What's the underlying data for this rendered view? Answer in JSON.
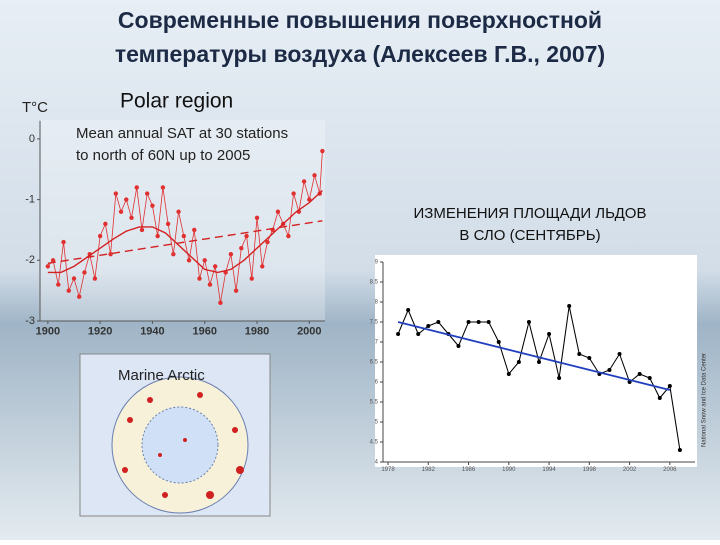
{
  "slide": {
    "title_lines": [
      "Современные повышения поверхностной",
      "температуры воздуха (Алексеев Г.В., 2007)"
    ],
    "map_label": "Marine Arctic"
  },
  "chart_data": [
    {
      "type": "line",
      "title": "Polar region",
      "subtitle_lines": [
        "Mean annual SAT at 30 stations",
        "to north of 60N up to 2005"
      ],
      "y_label": "T°C",
      "x": [
        1900,
        1902,
        1904,
        1906,
        1908,
        1910,
        1912,
        1914,
        1916,
        1918,
        1920,
        1922,
        1924,
        1926,
        1928,
        1930,
        1932,
        1934,
        1936,
        1938,
        1940,
        1942,
        1944,
        1946,
        1948,
        1950,
        1952,
        1954,
        1956,
        1958,
        1960,
        1962,
        1964,
        1966,
        1968,
        1970,
        1972,
        1974,
        1976,
        1978,
        1980,
        1982,
        1984,
        1986,
        1988,
        1990,
        1992,
        1994,
        1996,
        1998,
        2000,
        2002,
        2004,
        2005
      ],
      "xlim": [
        1897,
        2006
      ],
      "xticks": [
        1900,
        1920,
        1940,
        1960,
        1980,
        2000
      ],
      "ylim": [
        -3,
        0.3
      ],
      "yticks": [
        0,
        -1,
        -2,
        -3
      ],
      "series": [
        {
          "color": "#e03030",
          "markers": true,
          "values": [
            -2.1,
            -2.0,
            -2.4,
            -1.7,
            -2.5,
            -2.3,
            -2.6,
            -2.2,
            -1.9,
            -2.3,
            -1.6,
            -1.4,
            -1.9,
            -0.9,
            -1.2,
            -1.0,
            -1.3,
            -0.8,
            -1.5,
            -0.9,
            -1.1,
            -1.6,
            -0.8,
            -1.4,
            -1.9,
            -1.2,
            -1.6,
            -2.0,
            -1.5,
            -2.3,
            -2.0,
            -2.4,
            -2.1,
            -2.7,
            -2.2,
            -1.9,
            -2.5,
            -1.8,
            -1.6,
            -2.3,
            -1.3,
            -2.1,
            -1.7,
            -1.5,
            -1.2,
            -1.4,
            -1.6,
            -0.9,
            -1.2,
            -0.7,
            -1.0,
            -0.6,
            -0.9,
            -0.2
          ]
        },
        {
          "color": "#d42020",
          "x": [
            1900,
            1905,
            1910,
            1915,
            1920,
            1925,
            1930,
            1935,
            1940,
            1945,
            1950,
            1955,
            1960,
            1965,
            1970,
            1975,
            1980,
            1985,
            1990,
            1995,
            2000,
            2005
          ],
          "values": [
            -2.2,
            -2.2,
            -2.1,
            -1.95,
            -1.8,
            -1.65,
            -1.52,
            -1.45,
            -1.45,
            -1.55,
            -1.75,
            -1.95,
            -2.15,
            -2.2,
            -2.15,
            -2.0,
            -1.8,
            -1.6,
            -1.4,
            -1.2,
            -1.05,
            -0.85
          ]
        },
        {
          "color": "#d42020",
          "dashed": true,
          "x": [
            1900,
            2005
          ],
          "values": [
            -2.05,
            -1.35
          ]
        }
      ]
    },
    {
      "type": "line",
      "title": "ИЗМЕНЕНИЯ ПЛОЩАДИ ЛЬДОВ В СЛО (СЕНТЯБРЬ)",
      "source": "National Snow and Ice Data Center",
      "x": [
        1979,
        1980,
        1981,
        1982,
        1983,
        1984,
        1985,
        1986,
        1987,
        1988,
        1989,
        1990,
        1991,
        1992,
        1993,
        1994,
        1995,
        1996,
        1997,
        1998,
        1999,
        2000,
        2001,
        2002,
        2003,
        2004,
        2005,
        2006,
        2007
      ],
      "xlim": [
        1977.5,
        2008.5
      ],
      "xticks": [
        1978,
        1982,
        1986,
        1990,
        1994,
        1998,
        2002,
        2006
      ],
      "ylim": [
        4,
        9
      ],
      "yticks": [
        9,
        8.5,
        8,
        7.5,
        7,
        6.5,
        6,
        5.5,
        5,
        4.5,
        4
      ],
      "series": [
        {
          "color": "#000000",
          "markers": true,
          "values": [
            7.2,
            7.8,
            7.2,
            7.4,
            7.5,
            7.2,
            6.9,
            7.5,
            7.5,
            7.5,
            7.0,
            6.2,
            6.5,
            7.5,
            6.5,
            7.2,
            6.1,
            7.9,
            6.7,
            6.6,
            6.2,
            6.3,
            6.7,
            6.0,
            6.2,
            6.1,
            5.6,
            5.9,
            4.3
          ]
        },
        {
          "color": "#2040c0",
          "x": [
            1979,
            2006
          ],
          "values": [
            7.5,
            5.8
          ]
        }
      ]
    }
  ]
}
